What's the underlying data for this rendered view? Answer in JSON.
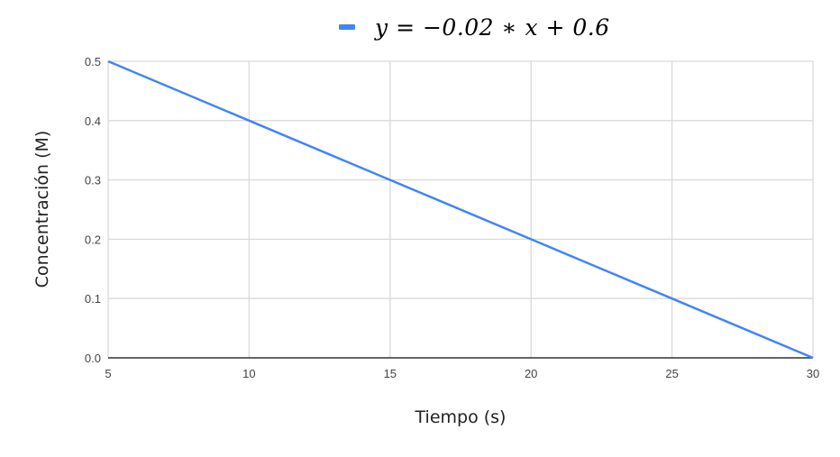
{
  "chart_data": {
    "type": "line",
    "title": "",
    "legend": [
      {
        "label": "y = −0.02 ∗ x + 0.6",
        "color": "#4285F4"
      }
    ],
    "legend_position": "top",
    "xlabel": "Tiempo (s)",
    "ylabel": "Concentración (M)",
    "x_ticks": [
      "5",
      "10",
      "15",
      "20",
      "25",
      "30"
    ],
    "y_ticks": [
      "0.0",
      "0.1",
      "0.2",
      "0.3",
      "0.4",
      "0.5"
    ],
    "xlim": [
      5,
      30
    ],
    "ylim": [
      0,
      0.5
    ],
    "grid": true,
    "series": [
      {
        "name": "y = −0.02 ∗ x + 0.6",
        "color": "#4285F4",
        "x": [
          5,
          10,
          15,
          20,
          25,
          30
        ],
        "y": [
          0.5,
          0.4,
          0.3,
          0.2,
          0.1,
          0.0
        ]
      }
    ]
  },
  "legend": {
    "label": "y = −0.02 ∗ x + 0.6",
    "color": "#4285F4"
  },
  "axes": {
    "xlabel": "Tiempo (s)",
    "ylabel": "Concentración (M)"
  }
}
